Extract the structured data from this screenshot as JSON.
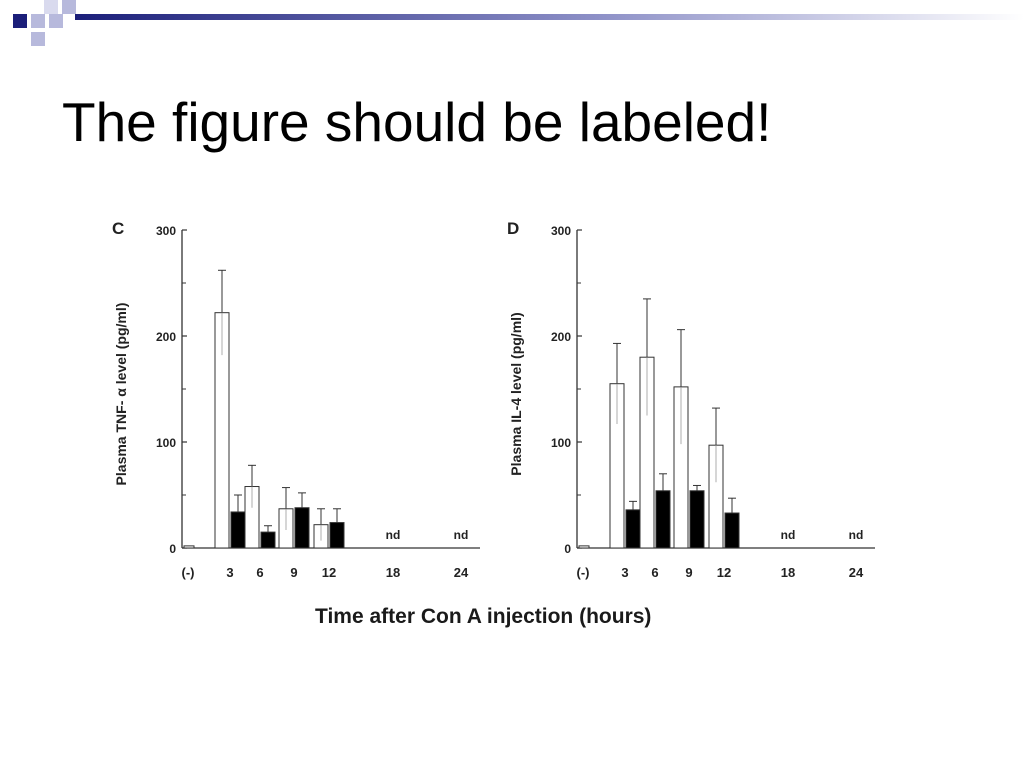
{
  "slide": {
    "title": "The figure should be labeled!"
  },
  "figure": {
    "x_axis_title": "Time after Con A injection (hours)"
  },
  "colors": {
    "white_bar": "#ffffff",
    "black_bar": "#000000",
    "deco_dark": "#1b1f7a",
    "deco_light": "#b7b9dc"
  },
  "chart_data": [
    {
      "type": "bar",
      "panel_label": "C",
      "ylabel": "Plasma TNF- α level (pg/ml)",
      "ylim": [
        0,
        300
      ],
      "yticks": [
        "0",
        "100",
        "200",
        "300"
      ],
      "categories": [
        "(-)",
        "3",
        "6",
        "9",
        "12",
        "18",
        "24"
      ],
      "series": [
        {
          "fill": "white",
          "values": [
            2,
            222,
            58,
            37,
            22,
            null,
            null
          ],
          "errors": [
            0,
            40,
            20,
            20,
            15,
            null,
            null
          ]
        },
        {
          "fill": "black",
          "values": [
            null,
            34,
            15,
            38,
            24,
            null,
            null
          ],
          "errors": [
            null,
            16,
            6,
            14,
            13,
            null,
            null
          ]
        }
      ],
      "annotations": {
        "18": "nd",
        "24": "nd"
      }
    },
    {
      "type": "bar",
      "panel_label": "D",
      "ylabel": "Plasma IL-4 level (pg/ml)",
      "ylim": [
        0,
        300
      ],
      "yticks": [
        "0",
        "100",
        "200",
        "300"
      ],
      "categories": [
        "(-)",
        "3",
        "6",
        "9",
        "12",
        "18",
        "24"
      ],
      "series": [
        {
          "fill": "white",
          "values": [
            2,
            155,
            180,
            152,
            97,
            null,
            null
          ],
          "errors": [
            0,
            38,
            55,
            54,
            35,
            null,
            null
          ]
        },
        {
          "fill": "black",
          "values": [
            null,
            36,
            54,
            54,
            33,
            null,
            null
          ],
          "errors": [
            null,
            8,
            16,
            5,
            14,
            null,
            null
          ]
        }
      ],
      "annotations": {
        "18": "nd",
        "24": "nd"
      }
    }
  ]
}
